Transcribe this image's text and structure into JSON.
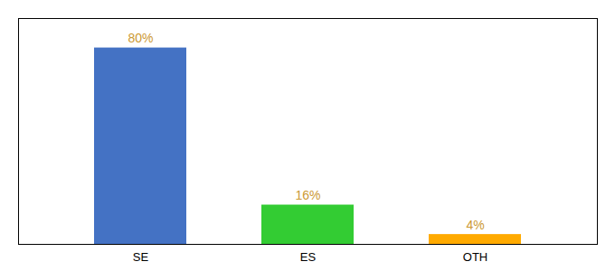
{
  "chart_data": {
    "type": "bar",
    "categories": [
      "SE",
      "ES",
      "OTH"
    ],
    "values": [
      80,
      16,
      4
    ],
    "value_labels": [
      "80%",
      "16%",
      "4%"
    ],
    "colors": [
      "#4472c4",
      "#33cc33",
      "#ffaa00"
    ],
    "ylim": [
      0,
      92
    ],
    "data_labels": true,
    "tick_labels": "x"
  }
}
